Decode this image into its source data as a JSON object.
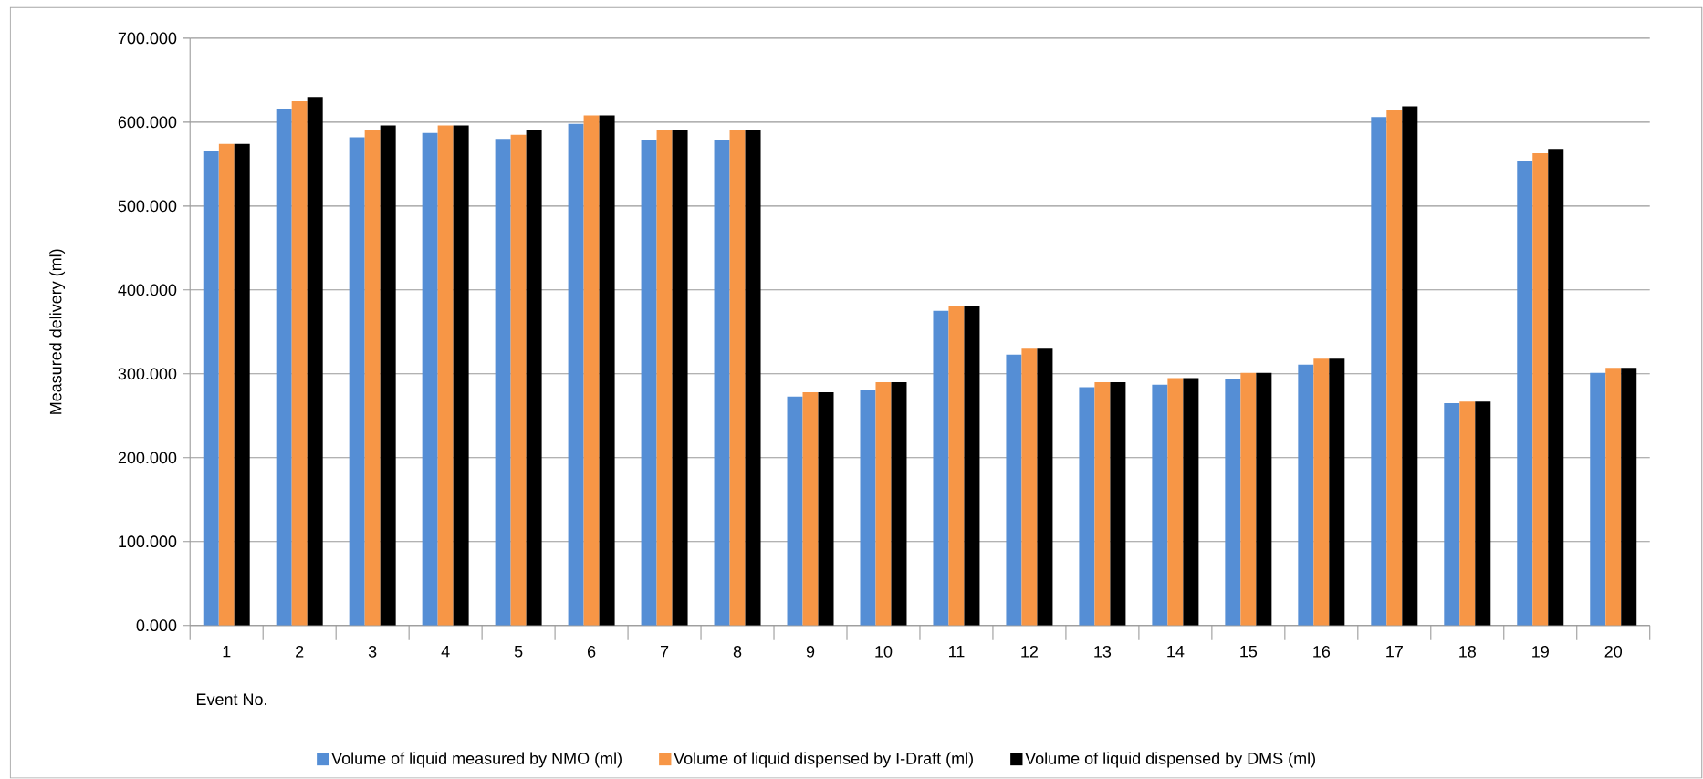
{
  "chart_data": {
    "type": "bar",
    "xlabel": "Event No.",
    "ylabel": "Measured delivery (ml)",
    "categories": [
      "1",
      "2",
      "3",
      "4",
      "5",
      "6",
      "7",
      "8",
      "9",
      "10",
      "11",
      "12",
      "13",
      "14",
      "15",
      "16",
      "17",
      "18",
      "19",
      "20"
    ],
    "series": [
      {
        "name": "Volume of liquid measured by NMO (ml)",
        "color": "#558ed5",
        "values": [
          565,
          616,
          582,
          587,
          580,
          598,
          578,
          578,
          273,
          281,
          375,
          323,
          284,
          287,
          294,
          311,
          606,
          265,
          553,
          301
        ]
      },
      {
        "name": "Volume of liquid dispensed by I-Draft (ml)",
        "color": "#f79646",
        "values": [
          574,
          625,
          591,
          596,
          585,
          608,
          591,
          591,
          278,
          290,
          381,
          330,
          290,
          295,
          301,
          318,
          614,
          267,
          563,
          307
        ]
      },
      {
        "name": "Volume of liquid dispensed by DMS (ml)",
        "color": "#000000",
        "values": [
          574,
          630,
          596,
          596,
          591,
          608,
          591,
          591,
          278,
          290,
          381,
          330,
          290,
          295,
          301,
          318,
          619,
          267,
          568,
          307
        ]
      }
    ],
    "ylim": [
      0,
      700
    ],
    "yticks": [
      {
        "value": 0,
        "label": "0.000"
      },
      {
        "value": 100,
        "label": "100.000"
      },
      {
        "value": 200,
        "label": "200.000"
      },
      {
        "value": 300,
        "label": "300.000"
      },
      {
        "value": 400,
        "label": "400.000"
      },
      {
        "value": 500,
        "label": "500.000"
      },
      {
        "value": 600,
        "label": "600.000"
      },
      {
        "value": 700,
        "label": "700.000"
      }
    ],
    "grid": "y",
    "legend": "bottom"
  }
}
